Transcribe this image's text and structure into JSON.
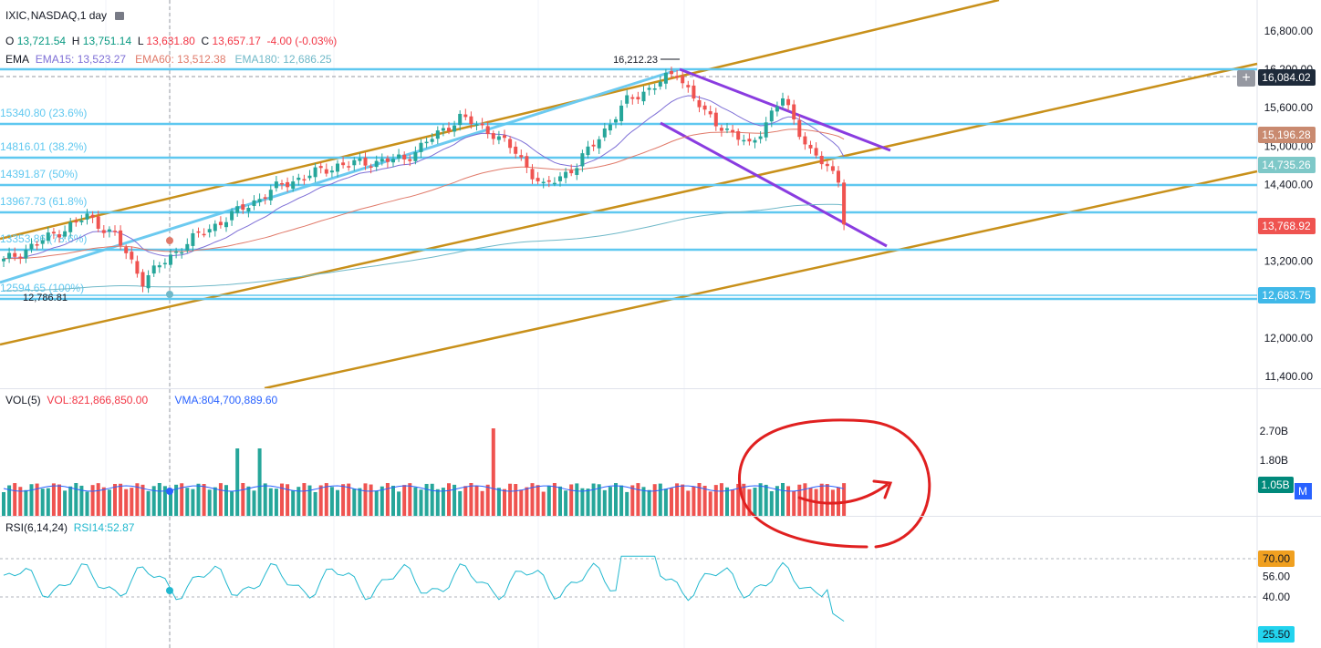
{
  "header": {
    "symbol": "IXIC",
    "interval": "NASDAQ,1 day",
    "ohlc": {
      "o_label": "O",
      "o": "13,721.54",
      "h_label": "H",
      "h": "13,751.14",
      "l_label": "L",
      "l": "13,631.80",
      "c_label": "C",
      "c": "13,657.17",
      "change": "-4.00 (-0.03%)"
    },
    "ema": {
      "label": "EMA",
      "ema15": "EMA15: 13,523.27",
      "ema60": "EMA60: 13,512.38",
      "ema180": "EMA180: 12,686.25"
    }
  },
  "volume_legend": {
    "label": "VOL(5)",
    "vol": "VOL:821,866,850.00",
    "vma": "VMA:804,700,889.60"
  },
  "rsi_legend": {
    "label": "RSI(6,14,24)",
    "rsi14": "RSI14:52.87"
  },
  "colors": {
    "up": "#26a69a",
    "down": "#ef5350",
    "fib": "#5fc8f0",
    "channel": "#c8901a",
    "wedge": "#8a3ce0",
    "annotation": "#e02020"
  },
  "chart_data": [
    {
      "type": "candlestick",
      "title": "IXIC NASDAQ, 1 day",
      "y_ticks": [
        "16,800.00",
        "16,200.00",
        "15,600.00",
        "15,000.00",
        "14,400.00",
        "13,200.00",
        "12,000.00",
        "11,400.00"
      ],
      "peak_label": "16,212.23",
      "low_label": "12,786.81",
      "fib_levels": [
        {
          "label": "15340.80 (23.6%)",
          "price": 15340.8
        },
        {
          "label": "14816.01 (38.2%)",
          "price": 14816.01
        },
        {
          "label": "14391.87 (50%)",
          "price": 14391.87
        },
        {
          "label": "13967.73 (61.8%)",
          "price": 13967.73
        },
        {
          "label": "13353.86 (78.6%)",
          "price": 13353.86
        },
        {
          "label": "12594.65 (100%)",
          "price": 12594.65
        }
      ],
      "price_tags": [
        {
          "text": "16,084.02",
          "color": "#1e2a3a"
        },
        {
          "text": "15,196.28",
          "color": "#c98a70"
        },
        {
          "text": "14,735.26",
          "color": "#7ec8c8"
        },
        {
          "text": "13,768.92",
          "color": "#ef5350"
        },
        {
          "text": "12,683.75",
          "color": "#3fb8e8"
        }
      ],
      "series": [
        {
          "name": "EMA15",
          "color": "#7e6fd6"
        },
        {
          "name": "EMA60",
          "color": "#e07a6a"
        },
        {
          "name": "EMA180",
          "color": "#6fb8c8"
        }
      ]
    },
    {
      "type": "bar",
      "title": "VOL(5)",
      "y_ticks": [
        "2.70B",
        "1.80B"
      ],
      "last_value": "1.05B",
      "vma_tag": "M"
    },
    {
      "type": "line",
      "title": "RSI(6,14,24)",
      "y_ticks": [
        "70.00",
        "56.00",
        "40.00"
      ],
      "last_value": "25.50"
    }
  ]
}
